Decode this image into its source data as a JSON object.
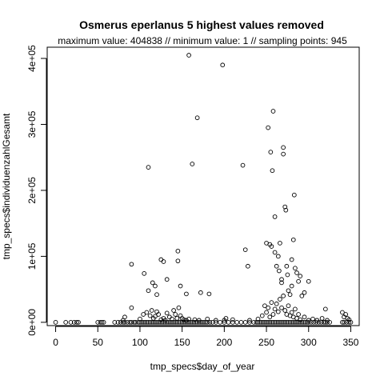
{
  "chart_data": {
    "type": "scatter",
    "title": "Osmerus eperlanus  5 highest values removed",
    "subtitle": "maximum value: 404838  //  minimum value: 1  // sampling points: 945",
    "xlabel": "tmp_specs$day_of_year",
    "ylabel": "tmp_specs$individuenzahlGesamt",
    "xlim": [
      -10,
      360
    ],
    "ylim": [
      -5000,
      417000
    ],
    "xticks": [
      0,
      50,
      100,
      150,
      200,
      250,
      300,
      350
    ],
    "xtick_labels": [
      "0",
      "50",
      "100",
      "150",
      "200",
      "250",
      "300",
      "350"
    ],
    "yticks": [
      0,
      100000,
      200000,
      300000,
      400000
    ],
    "ytick_labels": [
      "0e+00",
      "1e+05",
      "2e+05",
      "3e+05",
      "4e+05"
    ],
    "grid": false,
    "legend": "none",
    "marker": "open-circle",
    "color": "#000000",
    "points": [
      [
        0,
        0
      ],
      [
        12,
        0
      ],
      [
        18,
        0
      ],
      [
        22,
        0
      ],
      [
        25,
        0
      ],
      [
        27,
        0
      ],
      [
        50,
        0
      ],
      [
        53,
        0
      ],
      [
        55,
        0
      ],
      [
        57,
        0
      ],
      [
        70,
        0
      ],
      [
        74,
        0
      ],
      [
        77,
        0
      ],
      [
        80,
        0
      ],
      [
        82,
        0
      ],
      [
        85,
        0
      ],
      [
        88,
        0
      ],
      [
        90,
        0
      ],
      [
        93,
        0
      ],
      [
        95,
        0
      ],
      [
        98,
        0
      ],
      [
        100,
        0
      ],
      [
        102,
        0
      ],
      [
        104,
        0
      ],
      [
        106,
        0
      ],
      [
        108,
        0
      ],
      [
        110,
        0
      ],
      [
        112,
        0
      ],
      [
        114,
        0
      ],
      [
        116,
        0
      ],
      [
        118,
        0
      ],
      [
        120,
        0
      ],
      [
        122,
        0
      ],
      [
        124,
        0
      ],
      [
        126,
        0
      ],
      [
        128,
        0
      ],
      [
        130,
        0
      ],
      [
        132,
        0
      ],
      [
        134,
        0
      ],
      [
        136,
        0
      ],
      [
        138,
        0
      ],
      [
        140,
        0
      ],
      [
        142,
        0
      ],
      [
        144,
        0
      ],
      [
        146,
        0
      ],
      [
        148,
        0
      ],
      [
        150,
        0
      ],
      [
        152,
        0
      ],
      [
        154,
        0
      ],
      [
        156,
        0
      ],
      [
        158,
        0
      ],
      [
        160,
        0
      ],
      [
        162,
        0
      ],
      [
        164,
        0
      ],
      [
        166,
        0
      ],
      [
        168,
        0
      ],
      [
        170,
        0
      ],
      [
        172,
        0
      ],
      [
        174,
        0
      ],
      [
        176,
        0
      ],
      [
        178,
        0
      ],
      [
        180,
        0
      ],
      [
        183,
        0
      ],
      [
        186,
        0
      ],
      [
        190,
        0
      ],
      [
        195,
        0
      ],
      [
        200,
        0
      ],
      [
        205,
        0
      ],
      [
        210,
        0
      ],
      [
        215,
        0
      ],
      [
        220,
        0
      ],
      [
        225,
        0
      ],
      [
        230,
        0
      ],
      [
        235,
        0
      ],
      [
        238,
        0
      ],
      [
        240,
        0
      ],
      [
        242,
        0
      ],
      [
        244,
        0
      ],
      [
        246,
        0
      ],
      [
        248,
        0
      ],
      [
        250,
        0
      ],
      [
        252,
        0
      ],
      [
        254,
        0
      ],
      [
        256,
        0
      ],
      [
        258,
        0
      ],
      [
        260,
        0
      ],
      [
        262,
        0
      ],
      [
        264,
        0
      ],
      [
        266,
        0
      ],
      [
        268,
        0
      ],
      [
        270,
        0
      ],
      [
        272,
        0
      ],
      [
        274,
        0
      ],
      [
        276,
        0
      ],
      [
        278,
        0
      ],
      [
        280,
        0
      ],
      [
        282,
        0
      ],
      [
        284,
        0
      ],
      [
        286,
        0
      ],
      [
        288,
        0
      ],
      [
        290,
        0
      ],
      [
        292,
        0
      ],
      [
        294,
        0
      ],
      [
        296,
        0
      ],
      [
        298,
        0
      ],
      [
        300,
        0
      ],
      [
        303,
        0
      ],
      [
        306,
        0
      ],
      [
        309,
        0
      ],
      [
        312,
        0
      ],
      [
        315,
        0
      ],
      [
        318,
        0
      ],
      [
        320,
        0
      ],
      [
        322,
        0
      ],
      [
        325,
        0
      ],
      [
        340,
        0
      ],
      [
        342,
        0
      ],
      [
        345,
        0
      ],
      [
        348,
        0
      ],
      [
        350,
        0
      ],
      [
        80,
        3000
      ],
      [
        82,
        8000
      ],
      [
        90,
        22000
      ],
      [
        100,
        5000
      ],
      [
        104,
        12000
      ],
      [
        108,
        15000
      ],
      [
        110,
        48000
      ],
      [
        112,
        10000
      ],
      [
        114,
        18000
      ],
      [
        116,
        6000
      ],
      [
        118,
        9000
      ],
      [
        120,
        16000
      ],
      [
        122,
        12000
      ],
      [
        125,
        4000
      ],
      [
        128,
        6000
      ],
      [
        130,
        3000
      ],
      [
        132,
        14000
      ],
      [
        135,
        8000
      ],
      [
        138,
        5000
      ],
      [
        140,
        18000
      ],
      [
        142,
        12000
      ],
      [
        144,
        6000
      ],
      [
        146,
        22000
      ],
      [
        148,
        10000
      ],
      [
        150,
        6000
      ],
      [
        152,
        4000
      ],
      [
        155,
        3000
      ],
      [
        158,
        5000
      ],
      [
        165,
        4000
      ],
      [
        170,
        3000
      ],
      [
        180,
        5000
      ],
      [
        190,
        3000
      ],
      [
        200,
        3000
      ],
      [
        202,
        6000
      ],
      [
        210,
        4000
      ],
      [
        230,
        3000
      ],
      [
        240,
        5000
      ],
      [
        245,
        10000
      ],
      [
        248,
        25000
      ],
      [
        250,
        15000
      ],
      [
        252,
        22000
      ],
      [
        254,
        8000
      ],
      [
        256,
        30000
      ],
      [
        258,
        12000
      ],
      [
        260,
        20000
      ],
      [
        262,
        28000
      ],
      [
        264,
        16000
      ],
      [
        266,
        35000
      ],
      [
        268,
        22000
      ],
      [
        270,
        40000
      ],
      [
        272,
        18000
      ],
      [
        274,
        12000
      ],
      [
        276,
        25000
      ],
      [
        278,
        10000
      ],
      [
        280,
        15000
      ],
      [
        282,
        8000
      ],
      [
        284,
        20000
      ],
      [
        286,
        6000
      ],
      [
        288,
        12000
      ],
      [
        290,
        4000
      ],
      [
        295,
        8000
      ],
      [
        300,
        3000
      ],
      [
        305,
        5000
      ],
      [
        310,
        3000
      ],
      [
        316,
        6000
      ],
      [
        320,
        20000
      ],
      [
        322,
        3000
      ],
      [
        340,
        15000
      ],
      [
        342,
        8000
      ],
      [
        344,
        12000
      ],
      [
        346,
        6000
      ],
      [
        348,
        4000
      ],
      [
        90,
        88000
      ],
      [
        105,
        74000
      ],
      [
        110,
        235000
      ],
      [
        115,
        60000
      ],
      [
        118,
        55000
      ],
      [
        120,
        42000
      ],
      [
        125,
        95000
      ],
      [
        128,
        92000
      ],
      [
        132,
        65000
      ],
      [
        145,
        108000
      ],
      [
        145,
        93000
      ],
      [
        148,
        55000
      ],
      [
        155,
        43000
      ],
      [
        158,
        404838
      ],
      [
        162,
        240000
      ],
      [
        168,
        310000
      ],
      [
        172,
        45000
      ],
      [
        182,
        43000
      ],
      [
        198,
        390000
      ],
      [
        222,
        238000
      ],
      [
        225,
        110000
      ],
      [
        228,
        85000
      ],
      [
        250,
        120000
      ],
      [
        252,
        295000
      ],
      [
        254,
        118000
      ],
      [
        255,
        258000
      ],
      [
        256,
        115000
      ],
      [
        257,
        230000
      ],
      [
        258,
        320000
      ],
      [
        260,
        160000
      ],
      [
        260,
        106000
      ],
      [
        262,
        85000
      ],
      [
        264,
        100000
      ],
      [
        265,
        78000
      ],
      [
        266,
        120000
      ],
      [
        268,
        60000
      ],
      [
        268,
        65000
      ],
      [
        270,
        265000
      ],
      [
        270,
        255000
      ],
      [
        272,
        175000
      ],
      [
        273,
        170000
      ],
      [
        274,
        85000
      ],
      [
        275,
        72000
      ],
      [
        276,
        48000
      ],
      [
        278,
        42000
      ],
      [
        280,
        55000
      ],
      [
        280,
        95000
      ],
      [
        282,
        125000
      ],
      [
        283,
        193000
      ],
      [
        284,
        82000
      ],
      [
        286,
        75000
      ],
      [
        288,
        62000
      ],
      [
        290,
        70000
      ],
      [
        292,
        40000
      ],
      [
        295,
        45000
      ],
      [
        300,
        62000
      ]
    ]
  }
}
